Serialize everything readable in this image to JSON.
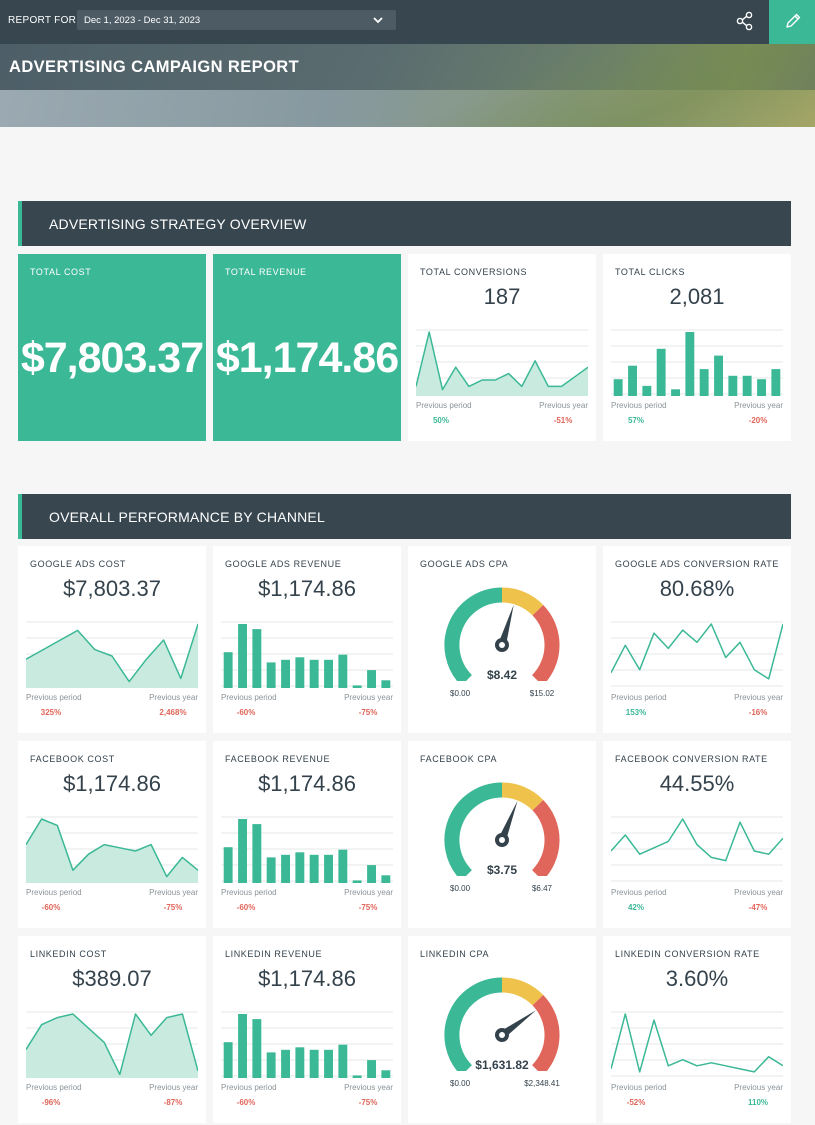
{
  "header": {
    "report_for_label": "REPORT FOR",
    "date_range": "Dec 1, 2023 - Dec 31, 2023",
    "title": "ADVERTISING CAMPAIGN REPORT",
    "icons": {
      "share": "share-icon",
      "edit": "pencil-icon",
      "dropdown": "chevron-down-icon"
    }
  },
  "colors": {
    "accent": "#3bb896",
    "dark": "#37464f",
    "negative": "#e0655a",
    "gauge_yellow": "#eec24b"
  },
  "sections": {
    "overview_title": "ADVERTISING STRATEGY OVERVIEW",
    "channel_title": "OVERALL PERFORMANCE BY CHANNEL"
  },
  "labels": {
    "previous_period": "Previous period",
    "previous_year": "Previous year"
  },
  "overview": {
    "total_cost": {
      "label": "TOTAL COST",
      "value": "$7,803.37"
    },
    "total_revenue": {
      "label": "TOTAL REVENUE",
      "value": "$1,174.86"
    },
    "total_conversions": {
      "label": "TOTAL CONVERSIONS",
      "value": "187",
      "prev_period": "50%",
      "prev_year": "-51%",
      "trend": [
        3,
        20,
        2,
        9,
        3,
        5,
        5,
        7,
        3,
        11,
        3,
        3,
        6,
        9
      ]
    },
    "total_clicks": {
      "label": "TOTAL CLICKS",
      "value": "2,081",
      "prev_period": "57%",
      "prev_year": "-20%",
      "bars": [
        5,
        9,
        3,
        14,
        2,
        19,
        8,
        12,
        6,
        6,
        5,
        8
      ]
    }
  },
  "channels": {
    "google_cost": {
      "label": "GOOGLE ADS COST",
      "value": "$7,803.37",
      "prev_period": "325%",
      "prev_year": "2,468%",
      "trend": [
        9,
        12,
        15,
        18,
        12,
        10,
        2,
        9,
        15,
        3,
        20
      ]
    },
    "google_revenue": {
      "label": "GOOGLE ADS REVENUE",
      "value": "$1,174.86",
      "prev_period": "-60%",
      "prev_year": "-75%",
      "bars": [
        14,
        25,
        23,
        10,
        11,
        12,
        11,
        11,
        13,
        1,
        7,
        3
      ]
    },
    "google_cpa": {
      "label": "GOOGLE ADS CPA",
      "value": "$8.42",
      "min": "$0.00",
      "max": "$15.02",
      "fraction": 0.56
    },
    "google_conv_rate": {
      "label": "GOOGLE ADS CONVERSION RATE",
      "value": "80.68%",
      "prev_period": "153%",
      "prev_year": "-16%",
      "trend": [
        5,
        14,
        6,
        18,
        13,
        19,
        15,
        21,
        10,
        15,
        6,
        3,
        21
      ]
    },
    "facebook_cost": {
      "label": "FACEBOOK COST",
      "value": "$1,174.86",
      "prev_period": "-60%",
      "prev_year": "-75%",
      "trend": [
        12,
        20,
        18,
        4,
        9,
        12,
        11,
        10,
        12,
        2,
        8,
        4
      ]
    },
    "facebook_revenue": {
      "label": "FACEBOOK REVENUE",
      "value": "$1,174.86",
      "prev_period": "-60%",
      "prev_year": "-75%",
      "bars": [
        14,
        25,
        23,
        10,
        11,
        12,
        11,
        11,
        13,
        1,
        7,
        3
      ]
    },
    "facebook_cpa": {
      "label": "FACEBOOK CPA",
      "value": "$3.75",
      "min": "$0.00",
      "max": "$6.47",
      "fraction": 0.58
    },
    "facebook_conv_rate": {
      "label": "FACEBOOK CONVERSION RATE",
      "value": "44.55%",
      "prev_period": "42%",
      "prev_year": "-47%",
      "trend": [
        10,
        15,
        9,
        11,
        13,
        20,
        12,
        8,
        7,
        19,
        10,
        9,
        14
      ]
    },
    "linkedin_cost": {
      "label": "LINKEDIN COST",
      "value": "$389.07",
      "prev_period": "-96%",
      "prev_year": "-87%",
      "trend": [
        8,
        15,
        17,
        18,
        14,
        10,
        1,
        18,
        12,
        17,
        18,
        2
      ]
    },
    "linkedin_revenue": {
      "label": "LINKEDIN REVENUE",
      "value": "$1,174.86",
      "prev_period": "-60%",
      "prev_year": "-75%",
      "bars": [
        14,
        25,
        23,
        10,
        11,
        12,
        11,
        11,
        13,
        1,
        7,
        3
      ]
    },
    "linkedin_cpa": {
      "label": "LINKEDIN CPA",
      "value": "$1,631.82",
      "min": "$0.00",
      "max": "$2,348.41",
      "fraction": 0.7
    },
    "linkedin_conv_rate": {
      "label": "LINKEDIN CONVERSION RATE",
      "value": "3.60%",
      "prev_period": "-52%",
      "prev_year": "110%",
      "trend": [
        3,
        21,
        2,
        19,
        4,
        6,
        4,
        5,
        4,
        3,
        2,
        7,
        4
      ]
    }
  }
}
